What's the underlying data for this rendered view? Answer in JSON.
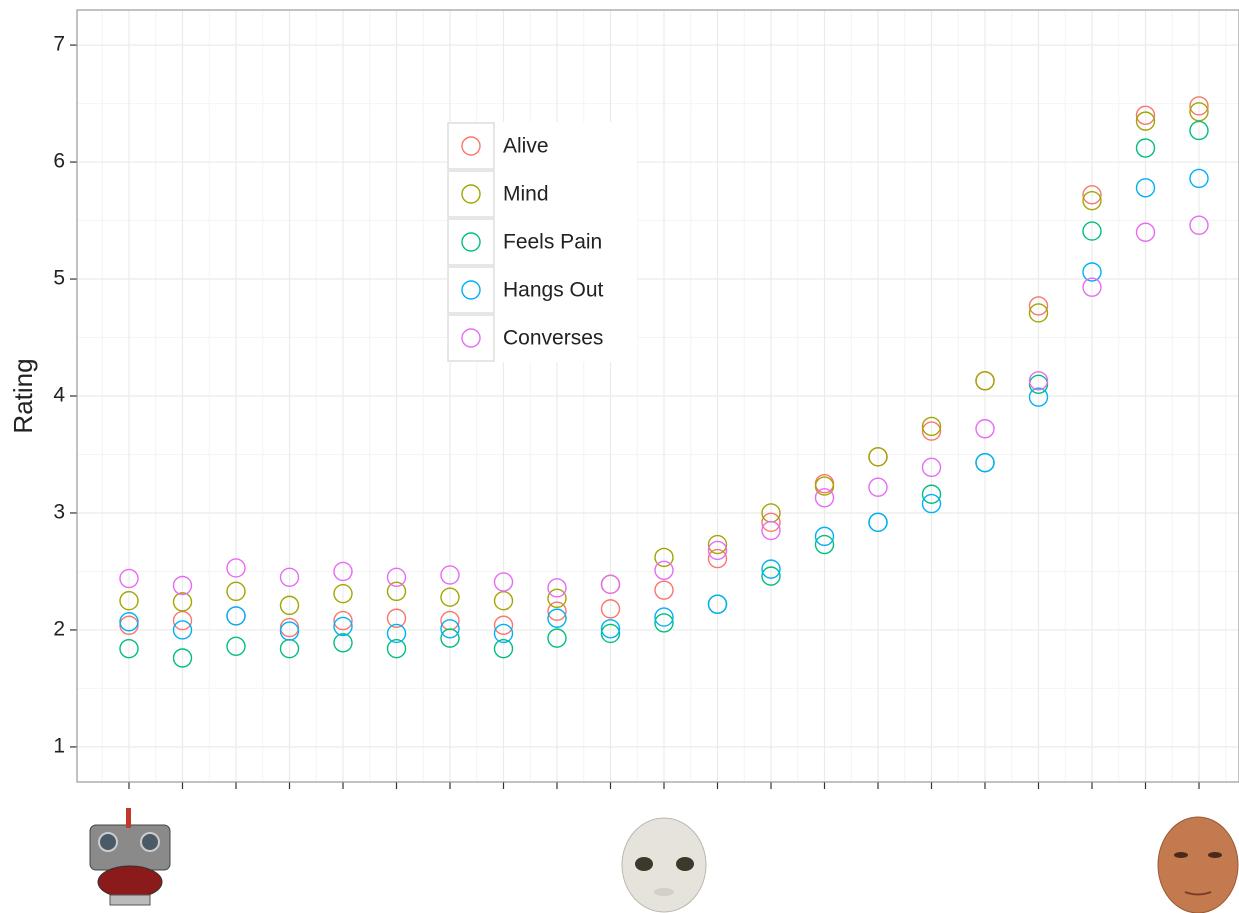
{
  "chart_data": {
    "type": "scatter",
    "y_label": "Rating",
    "categories": [
      null,
      null,
      null,
      null,
      null,
      null,
      null,
      null,
      null,
      null,
      null,
      null,
      null,
      null,
      null,
      null,
      null,
      null,
      null,
      null,
      null
    ],
    "ylim": [
      0.7,
      7.3
    ],
    "yticks": [
      1,
      2,
      3,
      4,
      5,
      6,
      7
    ],
    "grid": true,
    "legend": true,
    "series": [
      {
        "name": "Alive",
        "color": "#F8766D",
        "values": [
          2.04,
          2.08,
          2.12,
          2.02,
          2.08,
          2.1,
          2.08,
          2.04,
          2.16,
          2.18,
          2.34,
          2.61,
          2.92,
          3.25,
          3.48,
          3.7,
          4.13,
          4.77,
          5.72,
          6.4,
          6.48
        ]
      },
      {
        "name": "Mind",
        "color": "#A3A500",
        "values": [
          2.25,
          2.24,
          2.33,
          2.21,
          2.31,
          2.33,
          2.28,
          2.25,
          2.27,
          2.39,
          2.62,
          2.73,
          3.0,
          3.23,
          3.48,
          3.74,
          4.13,
          4.71,
          5.67,
          6.35,
          6.43
        ]
      },
      {
        "name": "Feels Pain",
        "color": "#00BF7D",
        "values": [
          1.84,
          1.76,
          1.86,
          1.84,
          1.89,
          1.84,
          1.93,
          1.84,
          1.93,
          1.97,
          2.06,
          2.22,
          2.46,
          2.73,
          2.92,
          3.16,
          3.43,
          4.1,
          5.41,
          6.12,
          6.27
        ]
      },
      {
        "name": "Hangs Out",
        "color": "#00B0F6",
        "values": [
          2.07,
          2.0,
          2.12,
          1.99,
          2.03,
          1.97,
          2.01,
          1.97,
          2.1,
          2.01,
          2.11,
          2.22,
          2.52,
          2.8,
          2.92,
          3.08,
          3.43,
          3.99,
          5.06,
          5.78,
          5.86
        ]
      },
      {
        "name": "Converses",
        "color": "#E76BF3",
        "values": [
          2.44,
          2.38,
          2.53,
          2.45,
          2.5,
          2.45,
          2.47,
          2.41,
          2.36,
          2.39,
          2.51,
          2.68,
          2.85,
          3.13,
          3.22,
          3.39,
          3.72,
          4.13,
          4.93,
          5.4,
          5.46
        ]
      }
    ]
  }
}
